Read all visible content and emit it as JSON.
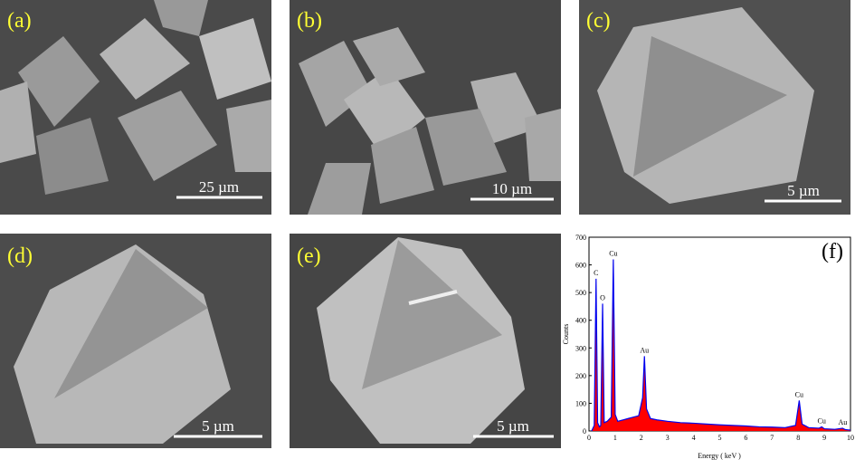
{
  "panels": [
    {
      "label": "(a)",
      "scale_bar": "25 µm"
    },
    {
      "label": "(b)",
      "scale_bar": "10 µm"
    },
    {
      "label": "(c)",
      "scale_bar": "5 µm"
    },
    {
      "label": "(d)",
      "scale_bar": "5 µm"
    },
    {
      "label": "(e)",
      "scale_bar": "5 µm"
    }
  ],
  "chart_data": {
    "type": "area",
    "label": "(f)",
    "x_label": "Energy ( keV )",
    "y_label": "Counts",
    "x": [
      0.1,
      0.2,
      0.27,
      0.33,
      0.4,
      0.45,
      0.52,
      0.58,
      0.7,
      0.85,
      0.93,
      1.0,
      1.1,
      1.3,
      1.5,
      1.7,
      1.9,
      2.05,
      2.12,
      2.2,
      2.35,
      2.6,
      3.0,
      3.5,
      4.0,
      4.5,
      5.0,
      5.5,
      6.0,
      6.5,
      7.0,
      7.5,
      7.9,
      8.04,
      8.15,
      8.4,
      8.8,
      8.9,
      9.0,
      9.4,
      9.7,
      9.8,
      10
    ],
    "values": [
      0,
      20,
      550,
      30,
      15,
      20,
      460,
      30,
      35,
      50,
      620,
      60,
      35,
      40,
      45,
      50,
      55,
      120,
      270,
      80,
      45,
      40,
      35,
      30,
      28,
      25,
      22,
      20,
      18,
      15,
      14,
      12,
      20,
      110,
      25,
      12,
      10,
      15,
      8,
      6,
      10,
      5,
      3
    ],
    "line_color": "#0000ee",
    "fill_color": "#ff0000",
    "peaks": [
      {
        "label": "C",
        "x": 0.27,
        "value": 550
      },
      {
        "label": "O",
        "x": 0.52,
        "value": 460
      },
      {
        "label": "Cu",
        "x": 0.93,
        "value": 620
      },
      {
        "label": "Au",
        "x": 2.12,
        "value": 270
      },
      {
        "label": "Cu",
        "x": 8.04,
        "value": 110
      },
      {
        "label": "Cu",
        "x": 8.9,
        "value": 15
      },
      {
        "label": "Au",
        "x": 9.7,
        "value": 10
      }
    ],
    "xlim": [
      0,
      10
    ],
    "xticks": [
      0,
      1,
      2,
      3,
      4,
      5,
      6,
      7,
      8,
      9,
      10
    ],
    "ylim": [
      0,
      700
    ],
    "yticks": [
      0,
      100,
      200,
      300,
      400,
      500,
      600,
      700
    ]
  }
}
